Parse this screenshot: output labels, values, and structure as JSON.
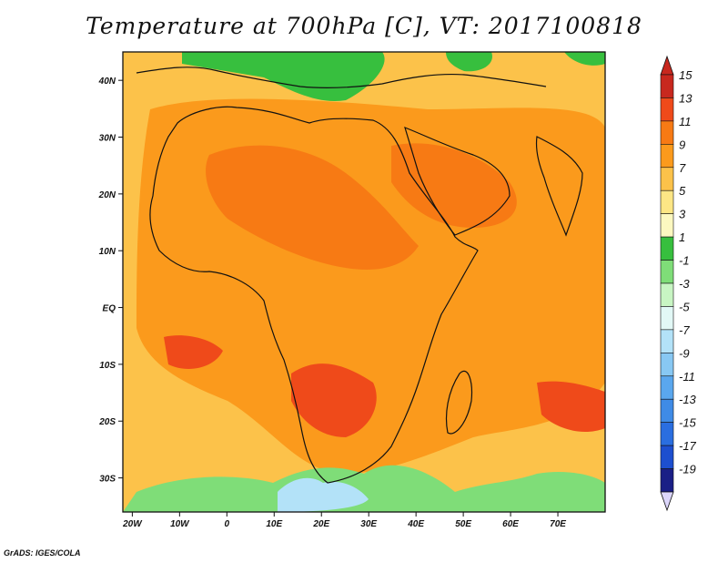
{
  "title": "Temperature at 700hPa [C], VT: 2017100818",
  "credit": "GrADS: IGES/COLA",
  "map": {
    "lon_range": [
      -22,
      80
    ],
    "lat_range": [
      -36,
      45
    ],
    "lon_ticks": [
      {
        "lon": -20,
        "label": "20W"
      },
      {
        "lon": -10,
        "label": "10W"
      },
      {
        "lon": 0,
        "label": "0"
      },
      {
        "lon": 10,
        "label": "10E"
      },
      {
        "lon": 20,
        "label": "20E"
      },
      {
        "lon": 30,
        "label": "30E"
      },
      {
        "lon": 40,
        "label": "40E"
      },
      {
        "lon": 50,
        "label": "50E"
      },
      {
        "lon": 60,
        "label": "60E"
      },
      {
        "lon": 70,
        "label": "70E"
      }
    ],
    "lat_ticks": [
      {
        "lat": 40,
        "label": "40N"
      },
      {
        "lat": 30,
        "label": "30N"
      },
      {
        "lat": 20,
        "label": "20N"
      },
      {
        "lat": 10,
        "label": "10N"
      },
      {
        "lat": 0,
        "label": "EQ"
      },
      {
        "lat": -10,
        "label": "10S"
      },
      {
        "lat": -20,
        "label": "20S"
      },
      {
        "lat": -30,
        "label": "30S"
      }
    ]
  },
  "colorbar": {
    "levels": [
      {
        "label": "15",
        "color": "#c8281e"
      },
      {
        "label": "13",
        "color": "#ef4a1a"
      },
      {
        "label": "11",
        "color": "#f77a14"
      },
      {
        "label": "9",
        "color": "#fb9a1c"
      },
      {
        "label": "7",
        "color": "#fcc24a"
      },
      {
        "label": "5",
        "color": "#fde685"
      },
      {
        "label": "3",
        "color": "#fcf8c0"
      },
      {
        "label": "1",
        "color": "#37bf3e"
      },
      {
        "label": "-1",
        "color": "#7fdd78"
      },
      {
        "label": "-3",
        "color": "#c8f5c3"
      },
      {
        "label": "-5",
        "color": "#e2f8f6"
      },
      {
        "label": "-7",
        "color": "#b3e2f8"
      },
      {
        "label": "-9",
        "color": "#88c8f3"
      },
      {
        "label": "-11",
        "color": "#5aa7ee"
      },
      {
        "label": "-13",
        "color": "#3f8be6"
      },
      {
        "label": "-15",
        "color": "#2a6ee0"
      },
      {
        "label": "-17",
        "color": "#1d4fcf"
      },
      {
        "label": "-19",
        "color": "#1a1f86"
      }
    ],
    "bottom_triangle_color": "#dcd6fb"
  },
  "regions": [
    {
      "name": "background-warm",
      "color": "#fcc24a"
    },
    {
      "name": "africa-land-warm",
      "color": "#fb9a1c"
    },
    {
      "name": "sahara-hot",
      "color": "#f77a14"
    },
    {
      "name": "southern-hot",
      "color": "#ef4a1a"
    },
    {
      "name": "mediterranean-cool",
      "color": "#37bf3e"
    },
    {
      "name": "southern-ocean-cool",
      "color": "#7fdd78"
    },
    {
      "name": "southern-ocean-cold",
      "color": "#b3e2f8"
    }
  ]
}
